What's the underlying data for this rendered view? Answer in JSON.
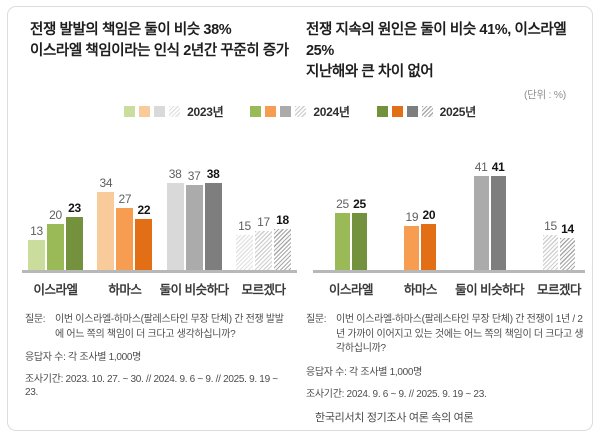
{
  "unit_label": "(단위 : %)",
  "source": "한국리서치 정기조사 여론 속의 여론",
  "legend": {
    "years": [
      "2023년",
      "2024년",
      "2025년"
    ],
    "family_order": [
      "green",
      "orange",
      "gray",
      "hatch"
    ]
  },
  "palette": {
    "green": {
      "2023년": "#cbdd9d",
      "2024년": "#9aba58",
      "2025년": "#74923d"
    },
    "orange": {
      "2023년": "#f9cb9b",
      "2024년": "#f69d51",
      "2025년": "#e26e15"
    },
    "gray": {
      "2023년": "#d9d9d9",
      "2024년": "#ababab",
      "2025년": "#7e7e7e"
    },
    "hatch": {
      "2023년": "#e2e2e2",
      "2024년": "#cfcfcf",
      "2025년": "#a9a9a9"
    }
  },
  "chart_data": [
    {
      "type": "bar",
      "title_lines": [
        "전쟁 발발의 책임은 둘이 비슷 38%",
        "이스라엘 책임이라는 인식 2년간 꾸준히 증가"
      ],
      "unit": "%",
      "categories": [
        "이스라엘",
        "하마스",
        "둘이 비슷하다",
        "모르겠다"
      ],
      "category_color_families": [
        "green",
        "orange",
        "gray",
        "hatch"
      ],
      "series": [
        {
          "name": "2023년",
          "values": [
            13,
            34,
            38,
            15
          ]
        },
        {
          "name": "2024년",
          "values": [
            20,
            27,
            37,
            17
          ]
        },
        {
          "name": "2025년",
          "values": [
            23,
            22,
            38,
            18
          ]
        }
      ],
      "ylim": [
        0,
        45
      ],
      "legend_position": "top",
      "question_label": "질문:",
      "question": "이번 이스라엘-하마스(팔레스타인 무장 단체) 간 전쟁 발발에 어느 쪽의 책임이 더 크다고 생각하십니까?",
      "respondents": "응답자 수: 각 조사별 1,000명",
      "period": "조사기간: 2023. 10. 27. ~ 30. // 2024. 9. 6 ~ 9. // 2025. 9. 19 ~ 23."
    },
    {
      "type": "bar",
      "title_lines": [
        "전쟁 지속의 원인은 둘이 비슷 41%, 이스라엘 25%",
        "지난해와 큰 차이 없어"
      ],
      "unit": "%",
      "categories": [
        "이스라엘",
        "하마스",
        "둘이 비슷하다",
        "모르겠다"
      ],
      "category_color_families": [
        "green",
        "orange",
        "gray",
        "hatch"
      ],
      "series": [
        {
          "name": "2024년",
          "values": [
            25,
            19,
            41,
            15
          ]
        },
        {
          "name": "2025년",
          "values": [
            25,
            20,
            41,
            14
          ]
        }
      ],
      "ylim": [
        0,
        45
      ],
      "legend_position": "top",
      "question_label": "질문:",
      "question": "이번 이스라엘-하마스(팔레스타인 무장 단체) 간 전쟁이 1년 / 2년 가까이 이어지고 있는 것에는 어느 쪽의 책임이 더 크다고 생각하십니까?",
      "respondents": "응답자 수: 각 조사별 1,000명",
      "period": "조사기간: 2024. 9. 6 ~ 9. // 2025. 9. 19 ~ 23."
    }
  ]
}
